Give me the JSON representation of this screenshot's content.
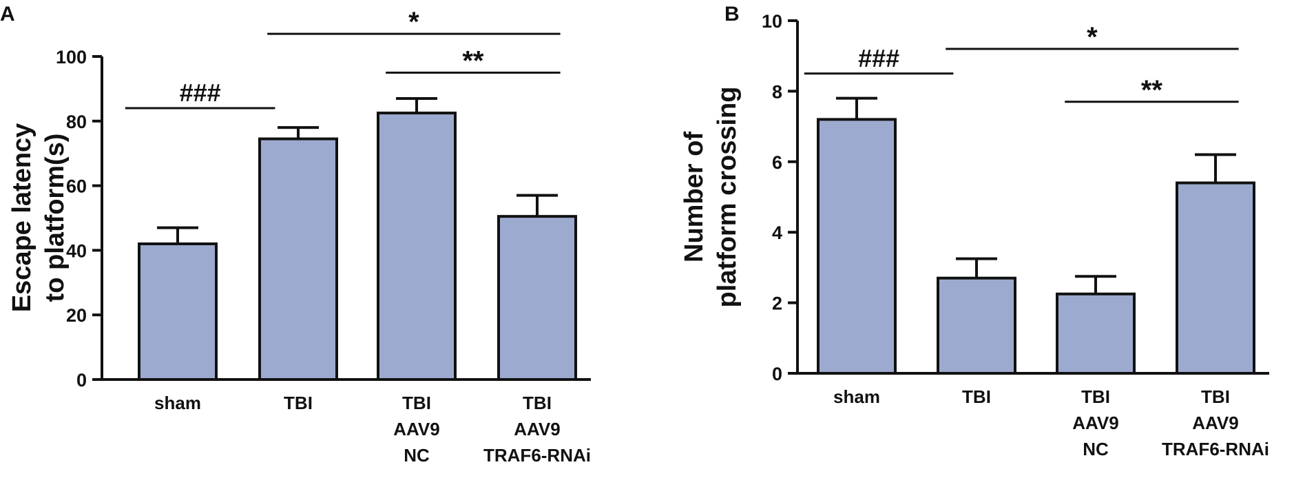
{
  "chart_data": [
    {
      "type": "bar",
      "panel_label": "A",
      "ylabel_lines": [
        "Escape latency",
        "to platform(s)"
      ],
      "ylim": [
        0,
        100
      ],
      "yticks": [
        0,
        20,
        40,
        60,
        80,
        100
      ],
      "colors": {
        "bar": "#9daacf",
        "stroke": "#111111"
      },
      "categories": [
        [
          "sham"
        ],
        [
          "TBI"
        ],
        [
          "TBI",
          "AAV9",
          "NC"
        ],
        [
          "TBI",
          "AAV9",
          "TRAF6-RNAi"
        ]
      ],
      "values": [
        42,
        74.5,
        82.5,
        50.5
      ],
      "errors": [
        5,
        3.5,
        4.5,
        6.5
      ],
      "significance": [
        {
          "label": "###",
          "from": 0,
          "to": 1,
          "y": 84
        },
        {
          "label": "**",
          "from": 2,
          "to": 3,
          "y": 95
        },
        {
          "label": "*",
          "from": 1,
          "to": 3,
          "y": 107
        }
      ]
    },
    {
      "type": "bar",
      "panel_label": "B",
      "ylabel_lines": [
        "Number of",
        "platform crossing"
      ],
      "ylim": [
        0,
        10
      ],
      "yticks": [
        0,
        2,
        4,
        6,
        8,
        10
      ],
      "colors": {
        "bar": "#9daacf",
        "stroke": "#111111"
      },
      "categories": [
        [
          "sham"
        ],
        [
          "TBI"
        ],
        [
          "TBI",
          "AAV9",
          "NC"
        ],
        [
          "TBI",
          "AAV9",
          "TRAF6-RNAi"
        ]
      ],
      "values": [
        7.2,
        2.7,
        2.25,
        5.4
      ],
      "errors": [
        0.6,
        0.55,
        0.5,
        0.8
      ],
      "significance": [
        {
          "label": "###",
          "from": 0,
          "to": 1,
          "y": 8.5
        },
        {
          "label": "**",
          "from": 2,
          "to": 3,
          "y": 7.7
        },
        {
          "label": "*",
          "from": 1,
          "to": 3,
          "y": 9.2
        }
      ]
    }
  ]
}
